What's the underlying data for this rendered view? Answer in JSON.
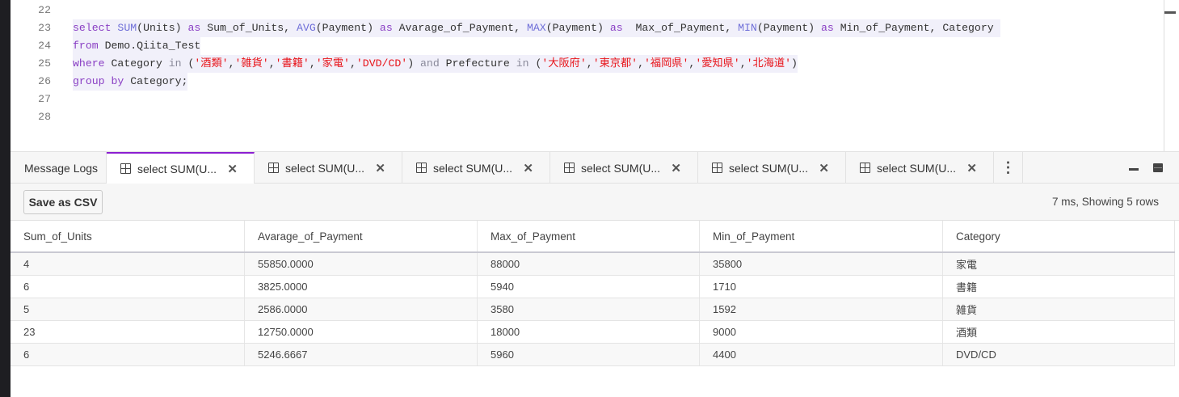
{
  "editor": {
    "lines": [
      {
        "num": "22",
        "tokens": []
      },
      {
        "num": "23",
        "tokens": [
          [
            "kw",
            "select"
          ],
          [
            "t",
            " "
          ],
          [
            "fn",
            "SUM"
          ],
          [
            "t",
            "(Units) "
          ],
          [
            "kw",
            "as"
          ],
          [
            "t",
            " Sum_of_Units, "
          ],
          [
            "fn",
            "AVG"
          ],
          [
            "t",
            "(Payment) "
          ],
          [
            "kw",
            "as"
          ],
          [
            "t",
            " Avarage_of_Payment, "
          ],
          [
            "fn",
            "MAX"
          ],
          [
            "t",
            "(Payment) "
          ],
          [
            "kw",
            "as"
          ],
          [
            "t",
            "  Max_of_Payment, "
          ],
          [
            "fn",
            "MIN"
          ],
          [
            "t",
            "(Payment) "
          ],
          [
            "kw",
            "as"
          ],
          [
            "t",
            " Min_of_Payment, Category "
          ]
        ]
      },
      {
        "num": "24",
        "tokens": [
          [
            "kw",
            "from"
          ],
          [
            "t",
            " Demo.Qiita_Test"
          ]
        ]
      },
      {
        "num": "25",
        "tokens": [
          [
            "kw",
            "where"
          ],
          [
            "t",
            " Category "
          ],
          [
            "op",
            "in"
          ],
          [
            "t",
            " ("
          ],
          [
            "str",
            "'酒類'"
          ],
          [
            "t",
            ","
          ],
          [
            "str",
            "'雑貨'"
          ],
          [
            "t",
            ","
          ],
          [
            "str",
            "'書籍'"
          ],
          [
            "t",
            ","
          ],
          [
            "str",
            "'家電'"
          ],
          [
            "t",
            ","
          ],
          [
            "str",
            "'DVD/CD'"
          ],
          [
            "t",
            ") "
          ],
          [
            "op",
            "and"
          ],
          [
            "t",
            " Prefecture "
          ],
          [
            "op",
            "in"
          ],
          [
            "t",
            " ("
          ],
          [
            "str",
            "'大阪府'"
          ],
          [
            "t",
            ","
          ],
          [
            "str",
            "'東京都'"
          ],
          [
            "t",
            ","
          ],
          [
            "str",
            "'福岡県'"
          ],
          [
            "t",
            ","
          ],
          [
            "str",
            "'愛知県'"
          ],
          [
            "t",
            ","
          ],
          [
            "str",
            "'北海道'"
          ],
          [
            "t",
            ")"
          ]
        ]
      },
      {
        "num": "26",
        "tokens": [
          [
            "kw",
            "group by"
          ],
          [
            "t",
            " Category;"
          ]
        ]
      },
      {
        "num": "27",
        "tokens": []
      },
      {
        "num": "28",
        "tokens": []
      }
    ]
  },
  "tabs": {
    "message_logs": "Message Logs",
    "results": [
      "select SUM(U...",
      "select SUM(U...",
      "select SUM(U...",
      "select SUM(U...",
      "select SUM(U...",
      "select SUM(U..."
    ],
    "close": "✕",
    "more": "⋮",
    "accent": "#8b1fd1"
  },
  "toolbar": {
    "save_csv": "Save as CSV",
    "status": "7 ms,  Showing 5 rows"
  },
  "table": {
    "columns": [
      "Sum_of_Units",
      "Avarage_of_Payment",
      "Max_of_Payment",
      "Min_of_Payment",
      "Category"
    ],
    "rows": [
      [
        "4",
        "55850.0000",
        "88000",
        "35800",
        "家電"
      ],
      [
        "6",
        "3825.0000",
        "5940",
        "1710",
        "書籍"
      ],
      [
        "5",
        "2586.0000",
        "3580",
        "1592",
        "雑貨"
      ],
      [
        "23",
        "12750.0000",
        "18000",
        "9000",
        "酒類"
      ],
      [
        "6",
        "5246.6667",
        "5960",
        "4400",
        "DVD/CD"
      ]
    ]
  }
}
